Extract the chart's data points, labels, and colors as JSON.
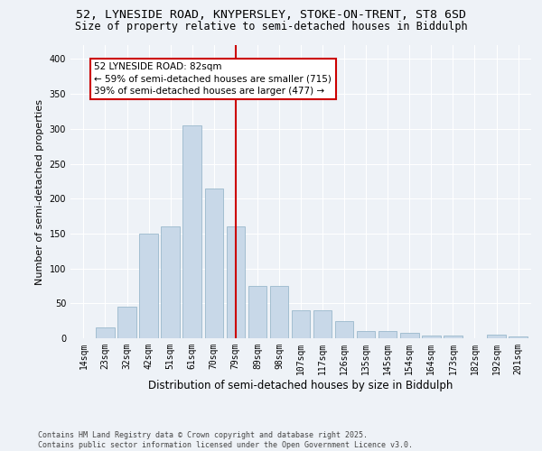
{
  "title1": "52, LYNESIDE ROAD, KNYPERSLEY, STOKE-ON-TRENT, ST8 6SD",
  "title2": "Size of property relative to semi-detached houses in Biddulph",
  "xlabel": "Distribution of semi-detached houses by size in Biddulph",
  "ylabel": "Number of semi-detached properties",
  "footnote": "Contains HM Land Registry data © Crown copyright and database right 2025.\nContains public sector information licensed under the Open Government Licence v3.0.",
  "categories": [
    "14sqm",
    "23sqm",
    "32sqm",
    "42sqm",
    "51sqm",
    "61sqm",
    "70sqm",
    "79sqm",
    "89sqm",
    "98sqm",
    "107sqm",
    "117sqm",
    "126sqm",
    "135sqm",
    "145sqm",
    "154sqm",
    "164sqm",
    "173sqm",
    "182sqm",
    "192sqm",
    "201sqm"
  ],
  "values": [
    0,
    15,
    45,
    150,
    160,
    305,
    215,
    160,
    75,
    75,
    40,
    40,
    25,
    10,
    10,
    8,
    4,
    4,
    0,
    5,
    3
  ],
  "bar_color": "#c8d8e8",
  "bar_edge_color": "#9ab8cc",
  "vline_x_idx": 7,
  "vline_color": "#cc0000",
  "annotation_text": "52 LYNESIDE ROAD: 82sqm\n← 59% of semi-detached houses are smaller (715)\n39% of semi-detached houses are larger (477) →",
  "annotation_box_color": "#ffffff",
  "annotation_box_edge": "#cc0000",
  "background_color": "#eef2f7",
  "plot_bg_color": "#eef2f7",
  "ylim": [
    0,
    420
  ],
  "yticks": [
    0,
    50,
    100,
    150,
    200,
    250,
    300,
    350,
    400
  ],
  "title_fontsize": 9.5,
  "subtitle_fontsize": 8.5,
  "axis_label_fontsize": 8,
  "tick_fontsize": 7,
  "footnote_fontsize": 6,
  "ann_fontsize": 7.5
}
